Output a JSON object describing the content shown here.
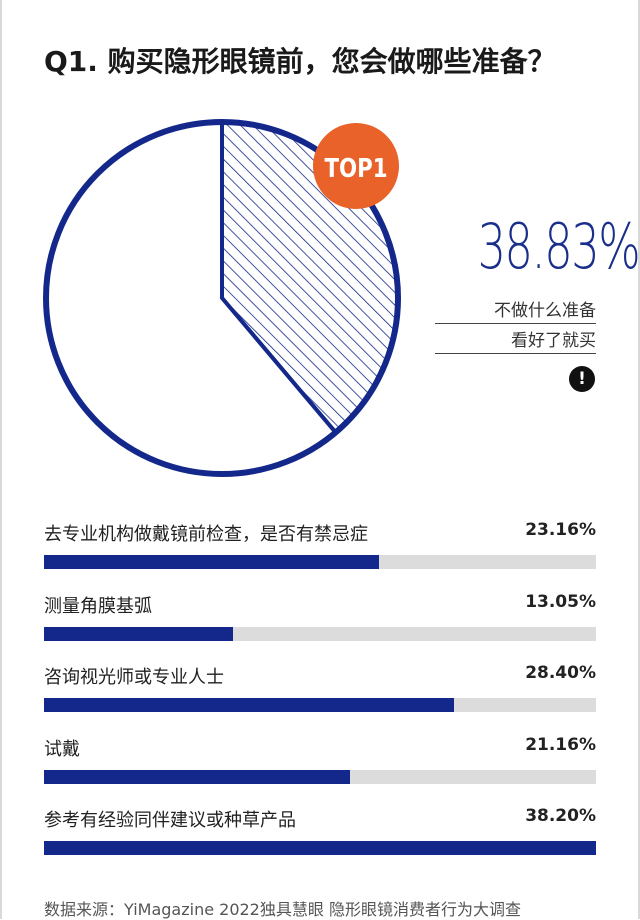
{
  "title": "Q1. 购买隐形眼镜前，您会做哪些准备？",
  "colors": {
    "navy": "#13288a",
    "orange": "#e8622a",
    "track": "#dcdcdc"
  },
  "badge": "TOP1",
  "highlight": {
    "value": "38.83%",
    "label_line1": "不做什么准备",
    "label_line2": "看好了就买",
    "icon": "exclamation-icon"
  },
  "chart_data": [
    {
      "type": "pie",
      "title": "",
      "slices": [
        {
          "label": "不做什么准备 看好了就买",
          "value": 38.83,
          "style": "hatched"
        },
        {
          "label": "",
          "value": 61.17,
          "style": "white"
        }
      ]
    },
    {
      "type": "bar",
      "orientation": "horizontal",
      "categories": [
        "去专业机构做戴镜前检查，是否有禁忌症",
        "测量角膜基弧",
        "咨询视光师或专业人士",
        "试戴",
        "参考有经验同伴建议或种草产品"
      ],
      "values": [
        23.16,
        13.05,
        28.4,
        21.16,
        38.2
      ],
      "value_labels": [
        "23.16%",
        "13.05%",
        "28.40%",
        "21.16%",
        "38.20%"
      ],
      "xlim": [
        0,
        38.2
      ]
    }
  ],
  "source": "数据来源：YiMagazine 2022独具慧眼 隐形眼镜消费者行为大调查"
}
